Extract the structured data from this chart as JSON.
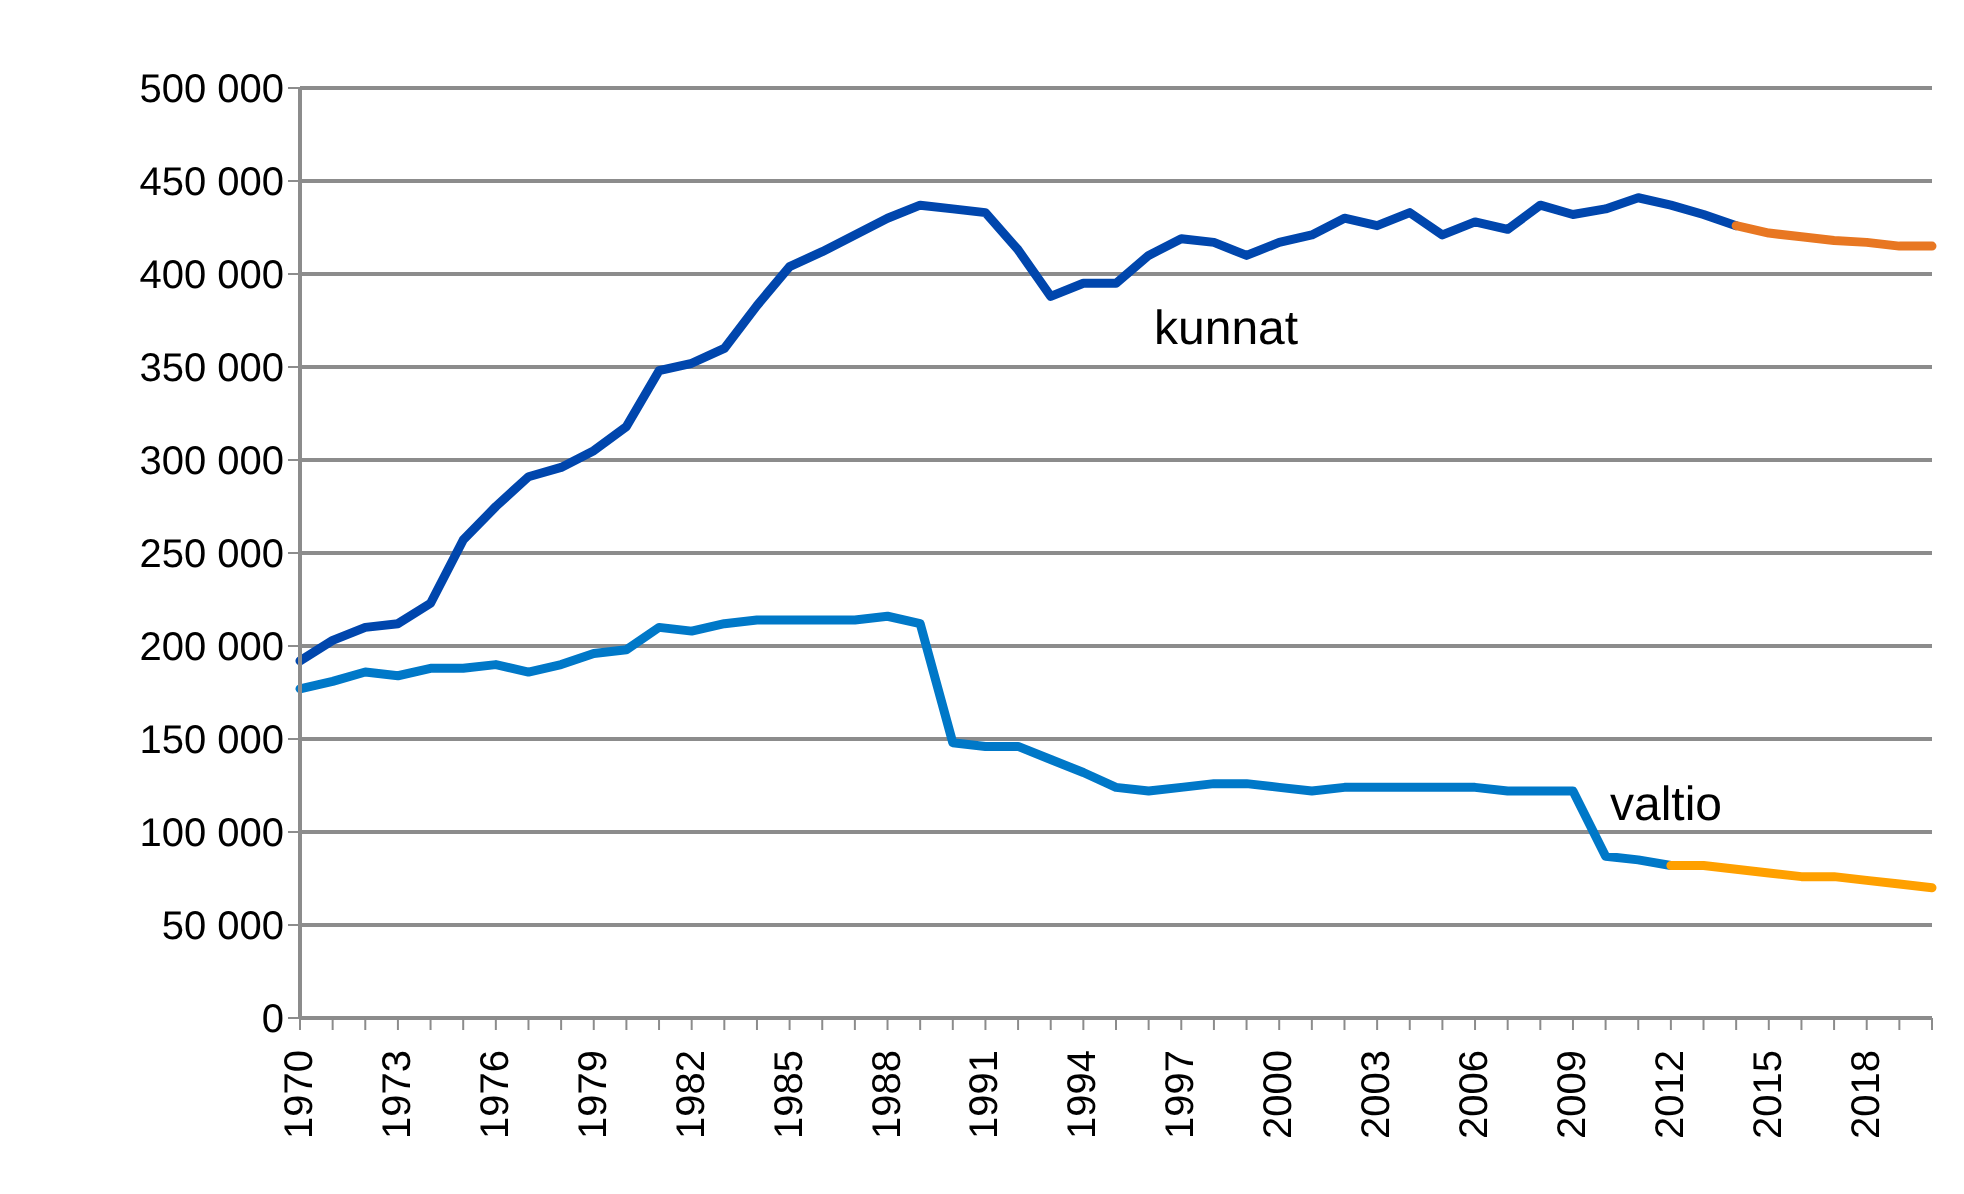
{
  "chart_data": {
    "type": "line",
    "categories": [
      "1970",
      null,
      null,
      "1973",
      null,
      null,
      "1976",
      null,
      null,
      "1979",
      null,
      null,
      "1982",
      null,
      null,
      "1985",
      null,
      null,
      "1988",
      null,
      null,
      "1991",
      null,
      null,
      "1994",
      null,
      null,
      "1997",
      null,
      null,
      "2000",
      null,
      null,
      "2003",
      null,
      null,
      "2006",
      null,
      null,
      "2009",
      null,
      null,
      "2012",
      null,
      null,
      "2015",
      null,
      null,
      "2018",
      null,
      null
    ],
    "series": [
      {
        "name": "kunnat",
        "color": "#0046ad",
        "values": [
          192000,
          203000,
          210000,
          212000,
          223000,
          257000,
          275000,
          291000,
          296000,
          305000,
          318000,
          348000,
          352000,
          360000,
          383000,
          404000,
          412000,
          421000,
          430000,
          437000,
          435000,
          433000,
          413000,
          388000,
          395000,
          395000,
          410000,
          419000,
          417000,
          410000,
          417000,
          421000,
          430000,
          426000,
          433000,
          421000,
          428000,
          424000,
          437000,
          432000,
          435000,
          441000,
          437000,
          432000,
          426000,
          null,
          null,
          null,
          null,
          null,
          null
        ]
      },
      {
        "color": "#e87722",
        "values": [
          null,
          null,
          null,
          null,
          null,
          null,
          null,
          null,
          null,
          null,
          null,
          null,
          null,
          null,
          null,
          null,
          null,
          null,
          null,
          null,
          null,
          null,
          null,
          null,
          null,
          null,
          null,
          null,
          null,
          null,
          null,
          null,
          null,
          null,
          null,
          null,
          null,
          null,
          null,
          null,
          null,
          null,
          null,
          null,
          426000,
          422000,
          420000,
          418000,
          417000,
          415000,
          415000
        ]
      },
      {
        "name": "valtio",
        "color": "#0078c8",
        "values": [
          177000,
          181000,
          186000,
          184000,
          188000,
          188000,
          190000,
          186000,
          190000,
          196000,
          198000,
          210000,
          208000,
          212000,
          214000,
          214000,
          214000,
          214000,
          216000,
          212000,
          148000,
          146000,
          146000,
          139000,
          132000,
          124000,
          122000,
          124000,
          126000,
          126000,
          124000,
          122000,
          124000,
          124000,
          124000,
          124000,
          124000,
          122000,
          122000,
          122000,
          87000,
          85000,
          82000,
          null,
          null,
          null,
          null,
          null,
          null,
          null,
          null
        ]
      },
      {
        "color": "#ffa000",
        "values": [
          null,
          null,
          null,
          null,
          null,
          null,
          null,
          null,
          null,
          null,
          null,
          null,
          null,
          null,
          null,
          null,
          null,
          null,
          null,
          null,
          null,
          null,
          null,
          null,
          null,
          null,
          null,
          null,
          null,
          null,
          null,
          null,
          null,
          null,
          null,
          null,
          null,
          null,
          null,
          null,
          null,
          null,
          82000,
          82000,
          80000,
          78000,
          76000,
          76000,
          74000,
          72000,
          70000
        ]
      }
    ],
    "ylim": [
      0,
      500000
    ],
    "yticks": [
      {
        "value": 0,
        "label": "0"
      },
      {
        "value": 50000,
        "label": "50 000"
      },
      {
        "value": 100000,
        "label": "100 000"
      },
      {
        "value": 150000,
        "label": "150 000"
      },
      {
        "value": 200000,
        "label": "200 000"
      },
      {
        "value": 250000,
        "label": "250 000"
      },
      {
        "value": 300000,
        "label": "300 000"
      },
      {
        "value": 350000,
        "label": "350 000"
      },
      {
        "value": 400000,
        "label": "400 000"
      },
      {
        "value": 450000,
        "label": "450 000"
      },
      {
        "value": 500000,
        "label": "500 000"
      }
    ],
    "grid": "y"
  }
}
